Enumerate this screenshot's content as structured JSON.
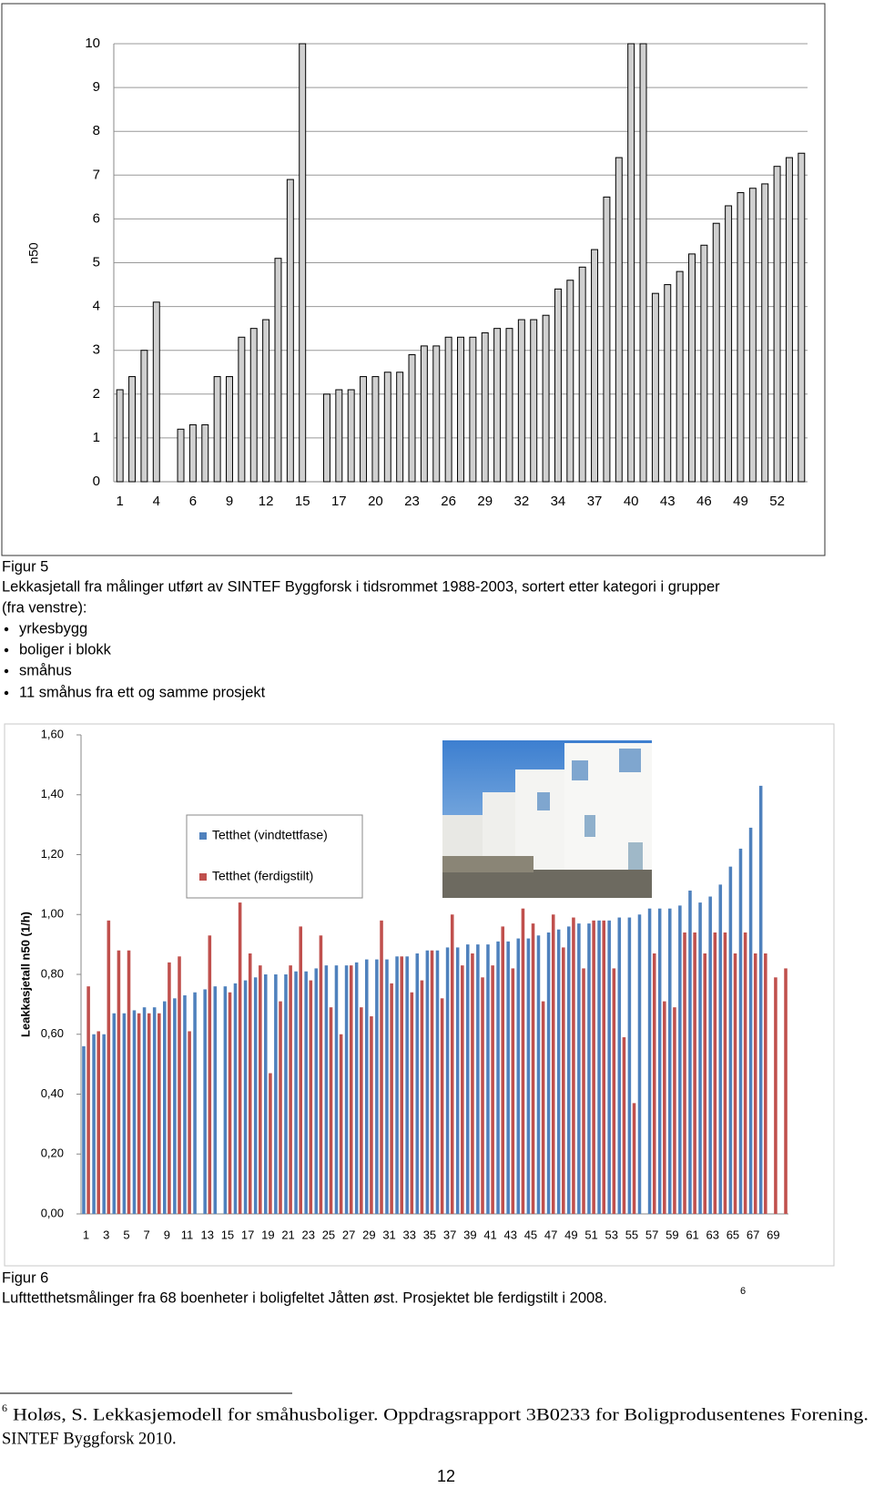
{
  "chart_data": [
    {
      "type": "bar",
      "ylabel": "n50",
      "categories": [
        "1",
        null,
        null,
        "4",
        null,
        null,
        "6",
        null,
        null,
        "9",
        null,
        null,
        "12",
        null,
        null,
        "15",
        null,
        null,
        "17",
        null,
        null,
        "20",
        null,
        null,
        "23",
        null,
        null,
        "26",
        null,
        null,
        "29",
        null,
        null,
        "32",
        null,
        null,
        "34",
        null,
        null,
        "37",
        null,
        null,
        "40",
        null,
        null,
        "43",
        null,
        null,
        "46",
        null,
        null,
        "49",
        null,
        null,
        "52",
        null,
        null
      ],
      "values": [
        2.1,
        2.4,
        3.0,
        4.1,
        null,
        1.2,
        1.3,
        1.3,
        2.4,
        2.4,
        3.3,
        3.5,
        3.7,
        5.1,
        6.9,
        10,
        null,
        2.0,
        2.1,
        2.1,
        2.4,
        2.4,
        2.5,
        2.5,
        2.9,
        3.1,
        3.1,
        3.3,
        3.3,
        3.3,
        3.4,
        3.5,
        3.5,
        3.7,
        3.7,
        3.8,
        4.4,
        4.6,
        4.9,
        5.3,
        6.5,
        7.4,
        10,
        10,
        4.3,
        4.5,
        4.8,
        5.2,
        5.4,
        5.9,
        6.3,
        6.6,
        6.7,
        6.8,
        7.2,
        7.4,
        7.5
      ],
      "color": "#d0d0d0",
      "ylim": [
        0,
        10
      ],
      "yticks": [
        0,
        1,
        2,
        3,
        4,
        5,
        6,
        7,
        8,
        9,
        10
      ],
      "grid": true
    },
    {
      "type": "bar",
      "ylabel": "Leakkasjetall n50 (1/h)",
      "categories": [
        "1",
        null,
        "3",
        null,
        "5",
        null,
        "7",
        null,
        "9",
        null,
        "11",
        null,
        "13",
        null,
        "15",
        null,
        "17",
        null,
        "19",
        null,
        "21",
        null,
        "23",
        null,
        "25",
        null,
        "27",
        null,
        "29",
        null,
        "31",
        null,
        "33",
        null,
        "35",
        null,
        "37",
        null,
        "39",
        null,
        "41",
        null,
        "43",
        null,
        "45",
        null,
        "47",
        null,
        "49",
        null,
        "51",
        null,
        "53",
        null,
        "55",
        null,
        "57",
        null,
        "59",
        null,
        "61",
        null,
        "63",
        null,
        "65",
        null,
        "67",
        null,
        "69",
        null
      ],
      "series": [
        {
          "name": "Tetthet (vindtettfase)",
          "color": "#4f81bd",
          "values": [
            0.56,
            0.6,
            0.6,
            0.67,
            0.67,
            0.68,
            0.69,
            0.69,
            0.71,
            0.72,
            0.73,
            0.74,
            0.75,
            0.76,
            0.76,
            0.77,
            0.78,
            0.79,
            0.8,
            0.8,
            0.8,
            0.81,
            0.81,
            0.82,
            0.83,
            0.83,
            0.83,
            0.84,
            0.85,
            0.85,
            0.85,
            0.86,
            0.86,
            0.87,
            0.88,
            0.88,
            0.89,
            0.89,
            0.9,
            0.9,
            0.9,
            0.91,
            0.91,
            0.92,
            0.92,
            0.93,
            0.94,
            0.95,
            0.96,
            0.97,
            0.97,
            0.98,
            0.98,
            0.99,
            0.99,
            1.0,
            1.02,
            1.02,
            1.02,
            1.03,
            1.08,
            1.04,
            1.06,
            1.1,
            1.16,
            1.22,
            1.29,
            1.43,
            null,
            null
          ]
        },
        {
          "name": "Tetthet (ferdigstilt)",
          "color": "#c0504d",
          "values": [
            0.76,
            0.61,
            0.98,
            0.88,
            0.88,
            0.67,
            0.67,
            0.67,
            0.84,
            0.86,
            0.61,
            null,
            0.93,
            null,
            0.74,
            1.04,
            0.87,
            0.83,
            0.47,
            0.71,
            0.83,
            0.96,
            0.78,
            0.93,
            0.69,
            0.6,
            0.83,
            0.69,
            0.66,
            0.98,
            0.77,
            0.86,
            0.74,
            0.78,
            0.88,
            0.72,
            1.0,
            0.83,
            0.87,
            0.79,
            0.83,
            0.96,
            0.82,
            1.02,
            0.97,
            0.71,
            1.0,
            0.89,
            0.99,
            0.82,
            0.98,
            0.98,
            0.82,
            0.59,
            0.37,
            null,
            0.87,
            0.71,
            0.69,
            0.94,
            0.94,
            0.87,
            0.94,
            0.94,
            0.87,
            0.94,
            0.87,
            0.87,
            0.79,
            0.82
          ]
        }
      ],
      "ylim": [
        0,
        1.6
      ],
      "yticks": [
        {
          "value": 0,
          "label": "0,00"
        },
        {
          "value": 0.2,
          "label": "0,20"
        },
        {
          "value": 0.4,
          "label": "0,40"
        },
        {
          "value": 0.6,
          "label": "0,60"
        },
        {
          "value": 0.8,
          "label": "0,80"
        },
        {
          "value": 1.0,
          "label": "1,00"
        },
        {
          "value": 1.2,
          "label": "1,20"
        },
        {
          "value": 1.4,
          "label": "1,40"
        },
        {
          "value": 1.6,
          "label": "1,60"
        }
      ],
      "grid": false,
      "legend": "upper left"
    }
  ],
  "figure5": {
    "label": "Figur 5",
    "caption": [
      "Lekkasjetall fra målinger utført av SINTEF Byggforsk i tidsrommet 1988-2003, sortert etter kategori i grupper",
      "(fra venstre):"
    ],
    "bullets": [
      "yrkesbygg",
      "boliger i blokk",
      "småhus",
      "11 småhus fra ett og samme prosjekt"
    ]
  },
  "figure6": {
    "label": "Figur 6",
    "caption": "Lufttetthetsmålinger fra 68 boenheter i boligfeltet Jåtten øst. Prosjektet ble ferdigstilt i 2008.",
    "footnote_ref": "6"
  },
  "footnote": {
    "number": "6",
    "lines": [
      "Holøs, S. Lekkasjemodell for småhusboliger. Oppdragsrapport 3B0233 for Boligprodusentenes Forening.",
      "SINTEF Byggforsk 2010."
    ]
  },
  "page_number": "12"
}
